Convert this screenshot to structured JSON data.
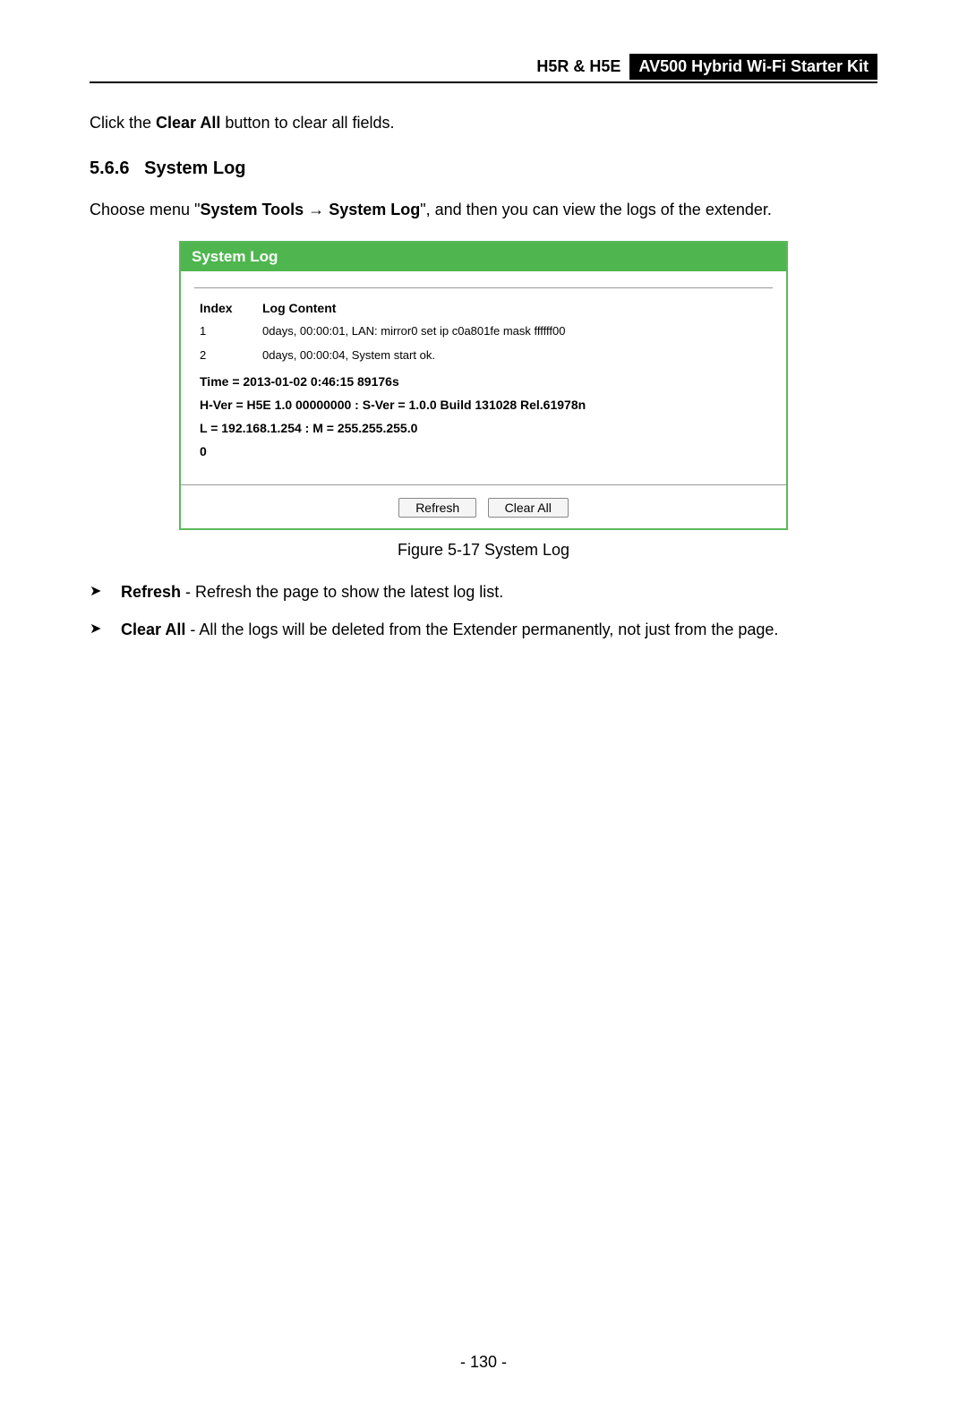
{
  "header": {
    "left": "H5R & H5E",
    "right": "AV500 Hybrid Wi-Fi Starter Kit"
  },
  "intro_para": {
    "prefix": "Click the ",
    "button_name": "Clear All",
    "suffix": " button to clear all fields."
  },
  "section": {
    "number": "5.6.6",
    "title": "System Log"
  },
  "menu_para": {
    "p1": "Choose menu \"",
    "b1": "System Tools",
    "arrow": " → ",
    "b2": "System Log",
    "p2": "\", and then you can view the logs of the extender."
  },
  "syslog": {
    "title": "System Log",
    "col_index": "Index",
    "col_content": "Log Content",
    "rows": [
      {
        "index": "1",
        "content": "0days, 00:00:01, LAN: mirror0 set ip c0a801fe mask ffffff00"
      },
      {
        "index": "2",
        "content": "0days, 00:00:04, System start ok."
      }
    ],
    "info_time": "Time = 2013-01-02 0:46:15 89176s",
    "info_ver": "H-Ver = H5E 1.0 00000000 : S-Ver = 1.0.0 Build 131028 Rel.61978n",
    "info_lan": "L = 192.168.1.254 : M = 255.255.255.0",
    "zero": "0",
    "btn_refresh": "Refresh",
    "btn_clear": "Clear All"
  },
  "figure_caption": "Figure 5-17 System Log",
  "bullets": [
    {
      "label": "Refresh",
      "sep": " - ",
      "text": "Refresh the page to show the latest log list."
    },
    {
      "label": "Clear All",
      "sep": " - ",
      "text": "All the logs will be deleted from the Extender permanently, not just from the page."
    }
  ],
  "page_number": "- 130 -",
  "style": {
    "panel_border_color": "#5cb85c",
    "title_bg": "#4fb64f",
    "title_color": "#ffffff"
  }
}
